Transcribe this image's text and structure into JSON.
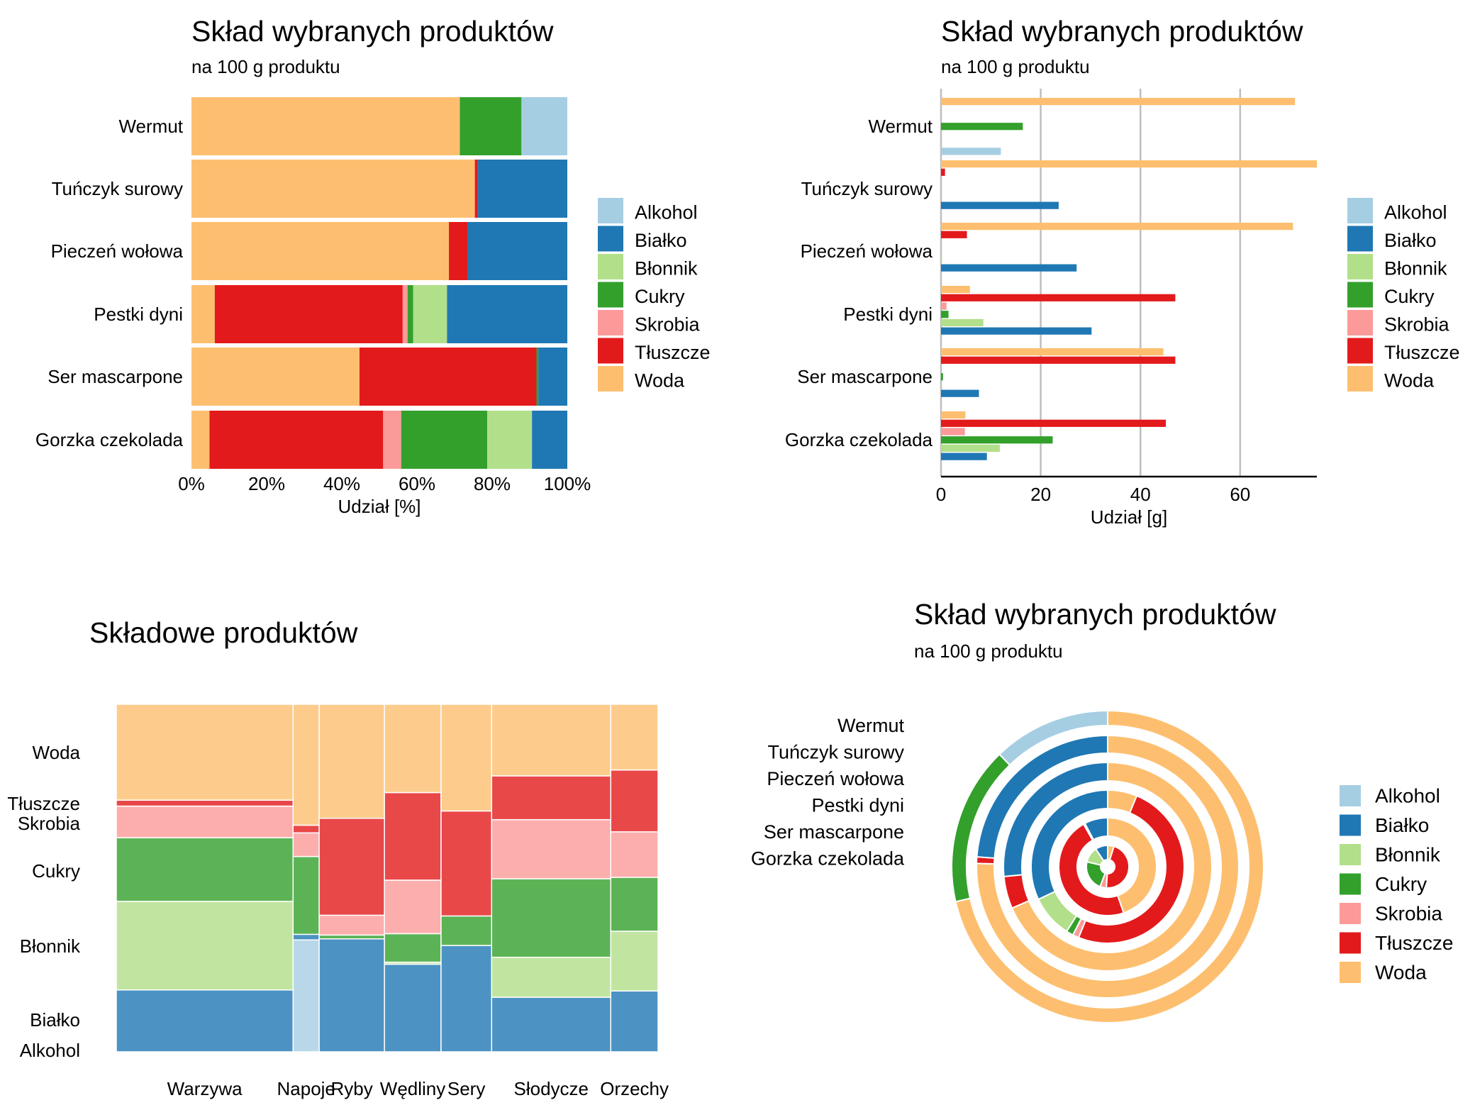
{
  "colors": {
    "Alkohol": "#A6CEE3",
    "Białko": "#1F78B4",
    "Błonnik": "#B2DF8A",
    "Cukry": "#33A02C",
    "Skrobia": "#FB9A99",
    "Tłuszcze": "#E31A1C",
    "Woda": "#FDBF6F"
  },
  "chart_data": [
    {
      "id": "stacked-percent",
      "type": "bar",
      "title": "Skład wybranych produktów",
      "subtitle": "na 100 g produktu",
      "xlabel": "Udział [%]",
      "ylabel": "",
      "xlim": [
        0,
        100
      ],
      "x_ticks": [
        "0%",
        "20%",
        "40%",
        "60%",
        "80%",
        "100%"
      ],
      "categories": [
        "Wermut",
        "Tuńczyk surowy",
        "Pieczeń wołowa",
        "Pestki dyni",
        "Ser mascarpone",
        "Gorzka czekolada"
      ],
      "stack_order": [
        "Woda",
        "Tłuszcze",
        "Skrobia",
        "Cukry",
        "Błonnik",
        "Białko",
        "Alkohol"
      ],
      "series": [
        {
          "name": "Woda",
          "values": [
            71.4,
            75.4,
            68.5,
            6.2,
            44.7,
            4.8
          ]
        },
        {
          "name": "Tłuszcze",
          "values": [
            0,
            0.8,
            5.0,
            50.0,
            47.1,
            46.2
          ]
        },
        {
          "name": "Skrobia",
          "values": [
            0,
            0,
            0,
            1.3,
            0,
            4.8
          ]
        },
        {
          "name": "Cukry",
          "values": [
            16.4,
            0,
            0,
            1.5,
            0.5,
            22.9
          ]
        },
        {
          "name": "Błonnik",
          "values": [
            0,
            0,
            0,
            9.0,
            0,
            11.9
          ]
        },
        {
          "name": "Białko",
          "values": [
            0,
            23.8,
            26.5,
            32.0,
            7.7,
            9.4
          ]
        },
        {
          "name": "Alkohol",
          "values": [
            12.2,
            0,
            0,
            0,
            0,
            0
          ]
        }
      ],
      "legend": [
        "Alkohol",
        "Białko",
        "Błonnik",
        "Cukry",
        "Skrobia",
        "Tłuszcze",
        "Woda"
      ],
      "legend_position": "right",
      "grid": false
    },
    {
      "id": "grouped-grams",
      "type": "bar",
      "title": "Skład wybranych produktów",
      "subtitle": "na 100 g produktu",
      "xlabel": "Udział [g]",
      "ylabel": "",
      "xlim": [
        0,
        75
      ],
      "x_ticks": [
        "0",
        "20",
        "40",
        "60"
      ],
      "categories": [
        "Wermut",
        "Tuńczyk surowy",
        "Pieczeń wołowa",
        "Pestki dyni",
        "Ser mascarpone",
        "Gorzka czekolada"
      ],
      "group_order_top_to_bottom": [
        "Woda",
        "Tłuszcze",
        "Skrobia",
        "Cukry",
        "Błonnik",
        "Białko",
        "Alkohol"
      ],
      "series": [
        {
          "name": "Woda",
          "values": [
            71.0,
            75.4,
            70.6,
            5.8,
            44.6,
            4.9
          ]
        },
        {
          "name": "Tłuszcze",
          "values": [
            0,
            0.8,
            5.2,
            47.0,
            47.0,
            45.1
          ]
        },
        {
          "name": "Skrobia",
          "values": [
            0,
            0,
            0,
            1.1,
            0,
            4.8
          ]
        },
        {
          "name": "Cukry",
          "values": [
            16.4,
            0,
            0,
            1.5,
            0.4,
            22.4
          ]
        },
        {
          "name": "Błonnik",
          "values": [
            0,
            0,
            0.2,
            8.5,
            0,
            11.8
          ]
        },
        {
          "name": "Białko",
          "values": [
            0,
            23.6,
            27.2,
            30.2,
            7.6,
            9.2
          ]
        },
        {
          "name": "Alkohol",
          "values": [
            12.0,
            0,
            0,
            0,
            0,
            0
          ]
        }
      ],
      "legend": [
        "Alkohol",
        "Białko",
        "Błonnik",
        "Cukry",
        "Skrobia",
        "Tłuszcze",
        "Woda"
      ],
      "legend_position": "right",
      "grid": true
    },
    {
      "id": "mosaic",
      "type": "heatmap",
      "title": "Składowe produktów",
      "categories": [
        "Warzywa",
        "Napoje",
        "Ryby",
        "Wędliny",
        "Sery",
        "Słodycze",
        "Orzechy"
      ],
      "column_widths": [
        32.5,
        4.8,
        12.0,
        10.4,
        9.3,
        21.9,
        8.7
      ],
      "components_bottom_to_top": [
        "Alkohol",
        "Białko",
        "Błonnik",
        "Cukry",
        "Skrobia",
        "Tłuszcze",
        "Woda"
      ],
      "row_labels": [
        "Woda",
        "Tłuszcze",
        "Skrobia",
        "Cukry",
        "Błonnik",
        "Białko",
        "Alkohol"
      ],
      "shares": [
        {
          "category": "Warzywa",
          "values": [
            0,
            17.8,
            25.5,
            18.3,
            9.1,
            1.7,
            27.6
          ]
        },
        {
          "category": "Napoje",
          "values": [
            32.2,
            1.6,
            0,
            22.4,
            6.8,
            2.2,
            34.8
          ]
        },
        {
          "category": "Ryby",
          "values": [
            0,
            32.5,
            0,
            1.1,
            5.7,
            27.9,
            32.8
          ]
        },
        {
          "category": "Wędliny",
          "values": [
            0,
            25.2,
            0.6,
            8.2,
            15.4,
            25.2,
            25.4
          ]
        },
        {
          "category": "Sery",
          "values": [
            0,
            30.6,
            0,
            8.5,
            0,
            30.2,
            30.7
          ]
        },
        {
          "category": "Słodycze",
          "values": [
            0,
            15.7,
            11.5,
            22.6,
            17.0,
            12.6,
            20.6
          ]
        },
        {
          "category": "Orzechy",
          "values": [
            0,
            17.5,
            17.2,
            15.5,
            13.1,
            17.8,
            18.9
          ]
        }
      ]
    },
    {
      "id": "nested-donut",
      "type": "pie",
      "title": "Skład wybranych produktów",
      "subtitle": "na 100 g produktu",
      "rings_outer_to_inner": [
        "Wermut",
        "Tuńczyk surowy",
        "Pieczeń wołowa",
        "Pestki dyni",
        "Ser mascarpone",
        "Gorzka czekolada"
      ],
      "slice_order_clockwise_from_top": [
        "Woda",
        "Tłuszcze",
        "Skrobia",
        "Cukry",
        "Błonnik",
        "Białko",
        "Alkohol"
      ],
      "series": [
        {
          "name": "Woda",
          "values": [
            71.4,
            75.4,
            68.5,
            6.2,
            44.7,
            4.8
          ]
        },
        {
          "name": "Tłuszcze",
          "values": [
            0,
            0.8,
            5.0,
            50.0,
            47.1,
            46.2
          ]
        },
        {
          "name": "Skrobia",
          "values": [
            0,
            0,
            0,
            1.3,
            0,
            4.8
          ]
        },
        {
          "name": "Cukry",
          "values": [
            16.4,
            0,
            0,
            1.5,
            0.5,
            22.9
          ]
        },
        {
          "name": "Błonnik",
          "values": [
            0,
            0,
            0,
            9.0,
            0,
            11.9
          ]
        },
        {
          "name": "Białko",
          "values": [
            0,
            23.8,
            26.5,
            32.0,
            7.7,
            9.4
          ]
        },
        {
          "name": "Alkohol",
          "values": [
            12.2,
            0,
            0,
            0,
            0,
            0
          ]
        }
      ],
      "legend": [
        "Alkohol",
        "Białko",
        "Błonnik",
        "Cukry",
        "Skrobia",
        "Tłuszcze",
        "Woda"
      ],
      "legend_position": "right"
    }
  ]
}
